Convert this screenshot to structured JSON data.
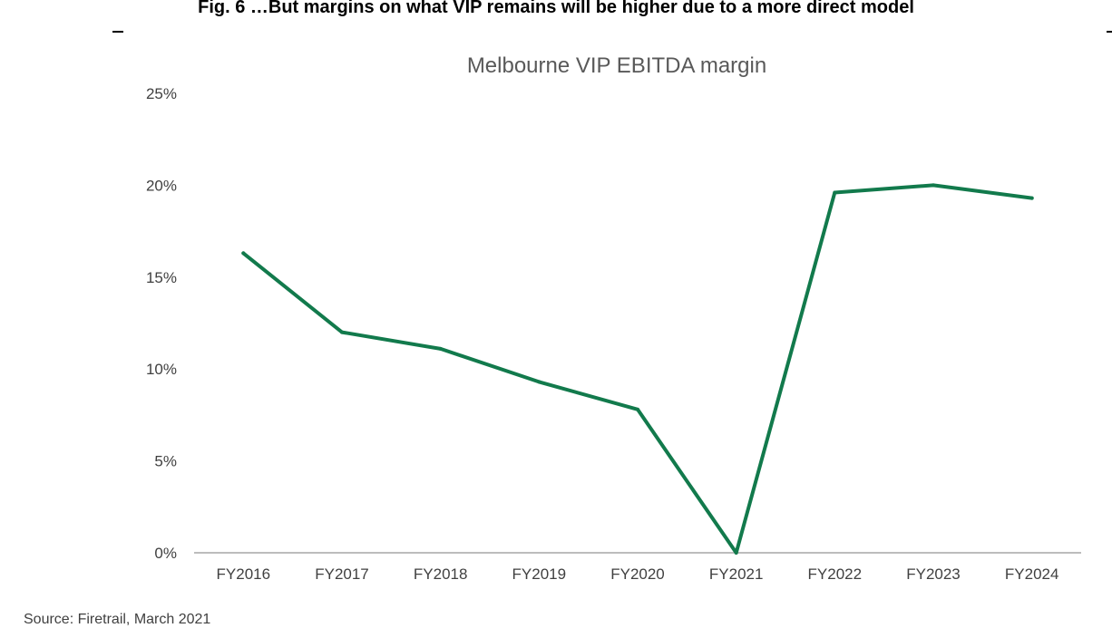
{
  "figure": {
    "title": "Fig. 6 …But margins on what VIP remains will be higher due to a more direct model",
    "source": "Source: Firetrail, March 2021"
  },
  "chart_data": {
    "type": "line",
    "title": "Melbourne VIP EBITDA margin",
    "xlabel": "",
    "ylabel": "",
    "categories": [
      "FY2016",
      "FY2017",
      "FY2018",
      "FY2019",
      "FY2020",
      "FY2021",
      "FY2022",
      "FY2023",
      "FY2024"
    ],
    "series": [
      {
        "values": [
          16.3,
          12.0,
          11.1,
          9.3,
          7.8,
          0.0,
          19.6,
          20.0,
          19.3
        ],
        "color": "#127a4c"
      }
    ],
    "ylim": [
      0,
      25
    ],
    "yticks": [
      0,
      5,
      10,
      15,
      20,
      25
    ],
    "ytick_labels": [
      "0%",
      "5%",
      "10%",
      "15%",
      "20%",
      "25%"
    ],
    "grid": false,
    "legend": "none",
    "axis_color": "#a6a6a6"
  }
}
